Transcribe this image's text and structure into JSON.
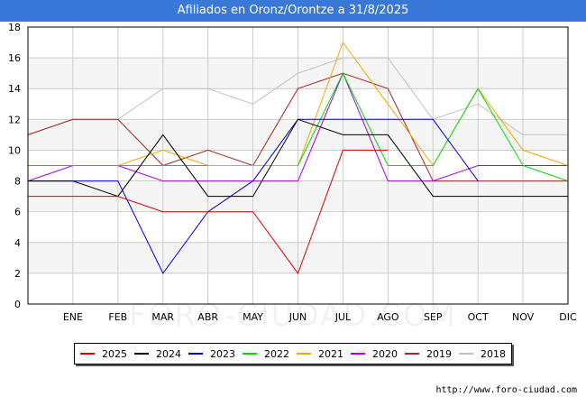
{
  "header": {
    "title": "Afiliados en Oronz/Orontze a 31/8/2025"
  },
  "footer": {
    "url": "http://www.foro-ciudad.com"
  },
  "watermark": {
    "text": "FORO-CIUDAD.COM"
  },
  "colors": {
    "title_bar": "#3a78d8",
    "band": "#f5f5f5",
    "grid": "#cccccc"
  },
  "chart_data": {
    "type": "line",
    "title": "Afiliados en Oronz/Orontze a 31/8/2025",
    "xlabel": "",
    "ylabel": "",
    "categories": [
      "",
      "ENE",
      "FEB",
      "MAR",
      "ABR",
      "MAY",
      "JUN",
      "JUL",
      "AGO",
      "SEP",
      "OCT",
      "NOV",
      "DIC"
    ],
    "y_ticks": [
      0,
      2,
      4,
      6,
      8,
      10,
      12,
      14,
      16,
      18
    ],
    "ylim": [
      0,
      18
    ],
    "grid": true,
    "legend_position": "bottom",
    "series": [
      {
        "name": "2025",
        "color": "#dd0000",
        "values": [
          7,
          7,
          7,
          6,
          6,
          6,
          2,
          10,
          10,
          null,
          null,
          null,
          null
        ]
      },
      {
        "name": "2024",
        "color": "#000000",
        "values": [
          8,
          8,
          7,
          11,
          7,
          7,
          12,
          11,
          11,
          7,
          7,
          7,
          7
        ]
      },
      {
        "name": "2023",
        "color": "#0000dd",
        "values": [
          8,
          8,
          8,
          2,
          6,
          8,
          12,
          12,
          12,
          12,
          8,
          null,
          null
        ]
      },
      {
        "name": "2022",
        "color": "#00dd00",
        "values": [
          9,
          9,
          9,
          9,
          9,
          null,
          9,
          15,
          9,
          9,
          14,
          9,
          8
        ]
      },
      {
        "name": "2021",
        "color": "#f0a800",
        "values": [
          9,
          9,
          9,
          10,
          9,
          9,
          9,
          17,
          13,
          9,
          14,
          10,
          9
        ]
      },
      {
        "name": "2020",
        "color": "#aa00dd",
        "values": [
          8,
          9,
          9,
          8,
          8,
          8,
          8,
          15,
          8,
          8,
          9,
          9,
          9
        ]
      },
      {
        "name": "2019",
        "color": "#aa2222",
        "values": [
          11,
          12,
          12,
          9,
          10,
          9,
          14,
          15,
          14,
          8,
          8,
          8,
          8
        ]
      },
      {
        "name": "2018",
        "color": "#c0c0c0",
        "values": [
          11,
          12,
          12,
          14,
          14,
          13,
          15,
          16,
          16,
          12,
          13,
          11,
          11
        ]
      }
    ]
  }
}
